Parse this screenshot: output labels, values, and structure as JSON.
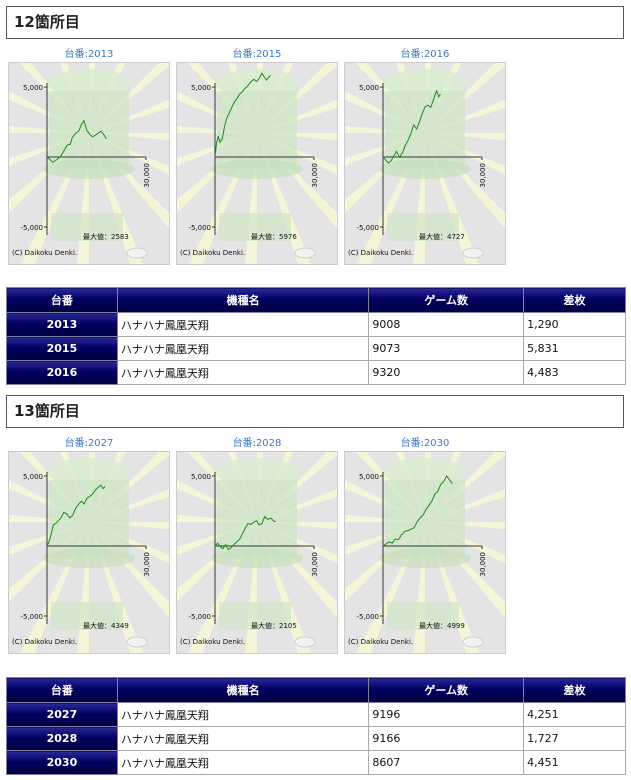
{
  "sections": [
    {
      "title": "12箇所目",
      "graphs": [
        {
          "label": "台番:2013",
          "max_label": "最大値：2583",
          "copyright": "(C) Daikoku Denki.",
          "points": [
            [
              0,
              0
            ],
            [
              800,
              -150
            ],
            [
              1700,
              -380
            ],
            [
              2600,
              -250
            ],
            [
              3500,
              -100
            ],
            [
              4400,
              150
            ],
            [
              5300,
              500
            ],
            [
              6100,
              850
            ],
            [
              7000,
              900
            ],
            [
              7700,
              1400
            ],
            [
              8600,
              1680
            ],
            [
              9600,
              1850
            ],
            [
              10400,
              2300
            ],
            [
              11200,
              2583
            ],
            [
              12100,
              1900
            ],
            [
              13000,
              1600
            ],
            [
              13800,
              1450
            ],
            [
              14600,
              1550
            ],
            [
              15500,
              1700
            ],
            [
              16400,
              1850
            ],
            [
              17200,
              1600
            ],
            [
              18000,
              1290
            ]
          ]
        },
        {
          "label": "台番:2015",
          "max_label": "最大値：5976",
          "copyright": "(C) Daikoku Denki.",
          "points": [
            [
              0,
              0
            ],
            [
              500,
              1000
            ],
            [
              1000,
              1500
            ],
            [
              1500,
              1050
            ],
            [
              2200,
              1300
            ],
            [
              2900,
              2200
            ],
            [
              3600,
              2800
            ],
            [
              4300,
              3150
            ],
            [
              5000,
              3500
            ],
            [
              5800,
              3900
            ],
            [
              6700,
              4200
            ],
            [
              7500,
              4500
            ],
            [
              8300,
              4650
            ],
            [
              9000,
              4900
            ],
            [
              9600,
              5000
            ],
            [
              10300,
              5200
            ],
            [
              11000,
              5400
            ],
            [
              11800,
              5550
            ],
            [
              12600,
              5400
            ],
            [
              13400,
              5600
            ],
            [
              14200,
              5976
            ],
            [
              15000,
              5700
            ],
            [
              15600,
              5500
            ],
            [
              16200,
              5700
            ],
            [
              16900,
              5831
            ]
          ]
        },
        {
          "label": "台番:2016",
          "max_label": "最大値：4727",
          "copyright": "(C) Daikoku Denki.",
          "points": [
            [
              0,
              0
            ],
            [
              800,
              -200
            ],
            [
              1600,
              -420
            ],
            [
              2400,
              -300
            ],
            [
              3200,
              50
            ],
            [
              4100,
              400
            ],
            [
              5000,
              -20
            ],
            [
              5900,
              300
            ],
            [
              6700,
              800
            ],
            [
              7600,
              1200
            ],
            [
              8500,
              1700
            ],
            [
              9300,
              2300
            ],
            [
              10200,
              2000
            ],
            [
              11100,
              2550
            ],
            [
              11900,
              3100
            ],
            [
              12800,
              3600
            ],
            [
              13600,
              3700
            ],
            [
              14500,
              3550
            ],
            [
              15300,
              4100
            ],
            [
              16200,
              4727
            ],
            [
              16900,
              4300
            ],
            [
              17400,
              4483
            ]
          ]
        }
      ],
      "table": {
        "headers": [
          "台番",
          "機種名",
          "ゲーム数",
          "差枚"
        ],
        "rows": [
          {
            "num": "2013",
            "name": "ハナハナ鳳凰天翔",
            "games": "9008",
            "diff": "1,290"
          },
          {
            "num": "2015",
            "name": "ハナハナ鳳凰天翔",
            "games": "9073",
            "diff": "5,831"
          },
          {
            "num": "2016",
            "name": "ハナハナ鳳凰天翔",
            "games": "9320",
            "diff": "4,483"
          }
        ]
      }
    },
    {
      "title": "13箇所目",
      "graphs": [
        {
          "label": "台番:2027",
          "max_label": "最大値：4349",
          "copyright": "(C) Daikoku Denki.",
          "points": [
            [
              0,
              0
            ],
            [
              600,
              300
            ],
            [
              1200,
              800
            ],
            [
              1900,
              1500
            ],
            [
              2600,
              1600
            ],
            [
              3400,
              1800
            ],
            [
              4200,
              2000
            ],
            [
              5100,
              2400
            ],
            [
              6000,
              2300
            ],
            [
              6900,
              2000
            ],
            [
              7800,
              2200
            ],
            [
              8700,
              2700
            ],
            [
              9500,
              2950
            ],
            [
              10400,
              3200
            ],
            [
              11200,
              3000
            ],
            [
              12100,
              3400
            ],
            [
              13000,
              3550
            ],
            [
              13800,
              3700
            ],
            [
              14700,
              4000
            ],
            [
              15500,
              4200
            ],
            [
              16300,
              4349
            ],
            [
              17000,
              4100
            ],
            [
              17600,
              4251
            ]
          ]
        },
        {
          "label": "台番:2028",
          "max_label": "最大値：2105",
          "copyright": "(C) Daikoku Denki.",
          "points": [
            [
              0,
              0
            ],
            [
              800,
              200
            ],
            [
              1600,
              -50
            ],
            [
              2400,
              -200
            ],
            [
              3200,
              100
            ],
            [
              4000,
              -250
            ],
            [
              4800,
              -150
            ],
            [
              5700,
              100
            ],
            [
              6600,
              300
            ],
            [
              7500,
              500
            ],
            [
              8400,
              900
            ],
            [
              9200,
              1300
            ],
            [
              10000,
              1600
            ],
            [
              10900,
              1550
            ],
            [
              11700,
              1700
            ],
            [
              12600,
              1800
            ],
            [
              13400,
              1500
            ],
            [
              14200,
              1600
            ],
            [
              15100,
              2105
            ],
            [
              16000,
              1900
            ],
            [
              16900,
              2000
            ],
            [
              17700,
              1800
            ],
            [
              18400,
              1727
            ]
          ]
        },
        {
          "label": "台番:2030",
          "max_label": "最大値：4999",
          "copyright": "(C) Daikoku Denki.",
          "points": [
            [
              0,
              0
            ],
            [
              900,
              150
            ],
            [
              1900,
              300
            ],
            [
              2800,
              200
            ],
            [
              3700,
              500
            ],
            [
              4700,
              450
            ],
            [
              5600,
              800
            ],
            [
              6600,
              1050
            ],
            [
              7500,
              1100
            ],
            [
              8500,
              1200
            ],
            [
              9400,
              1300
            ],
            [
              10300,
              1700
            ],
            [
              11200,
              2000
            ],
            [
              12100,
              2200
            ],
            [
              13000,
              2600
            ],
            [
              13900,
              2900
            ],
            [
              14800,
              3200
            ],
            [
              15700,
              3700
            ],
            [
              16600,
              3900
            ],
            [
              17500,
              4400
            ],
            [
              18400,
              4600
            ],
            [
              19300,
              4999
            ],
            [
              20200,
              4700
            ],
            [
              21100,
              4451
            ]
          ]
        }
      ],
      "table": {
        "headers": [
          "台番",
          "機種名",
          "ゲーム数",
          "差枚"
        ],
        "rows": [
          {
            "num": "2027",
            "name": "ハナハナ鳳凰天翔",
            "games": "9196",
            "diff": "4,251"
          },
          {
            "num": "2028",
            "name": "ハナハナ鳳凰天翔",
            "games": "9166",
            "diff": "1,727"
          },
          {
            "num": "2030",
            "name": "ハナハナ鳳凰天翔",
            "games": "8607",
            "diff": "4,451"
          }
        ]
      }
    }
  ],
  "axis": {
    "y_top_label": "5,000",
    "y_bottom_label": "-5,000",
    "x_end_label": "30,000",
    "ylim": [
      -5000,
      5000
    ],
    "xlim": [
      0,
      30000
    ]
  },
  "colors": {
    "line": "#1e8a1e",
    "header_bg": "#000060",
    "graph_bg": "#e4e4e4"
  }
}
